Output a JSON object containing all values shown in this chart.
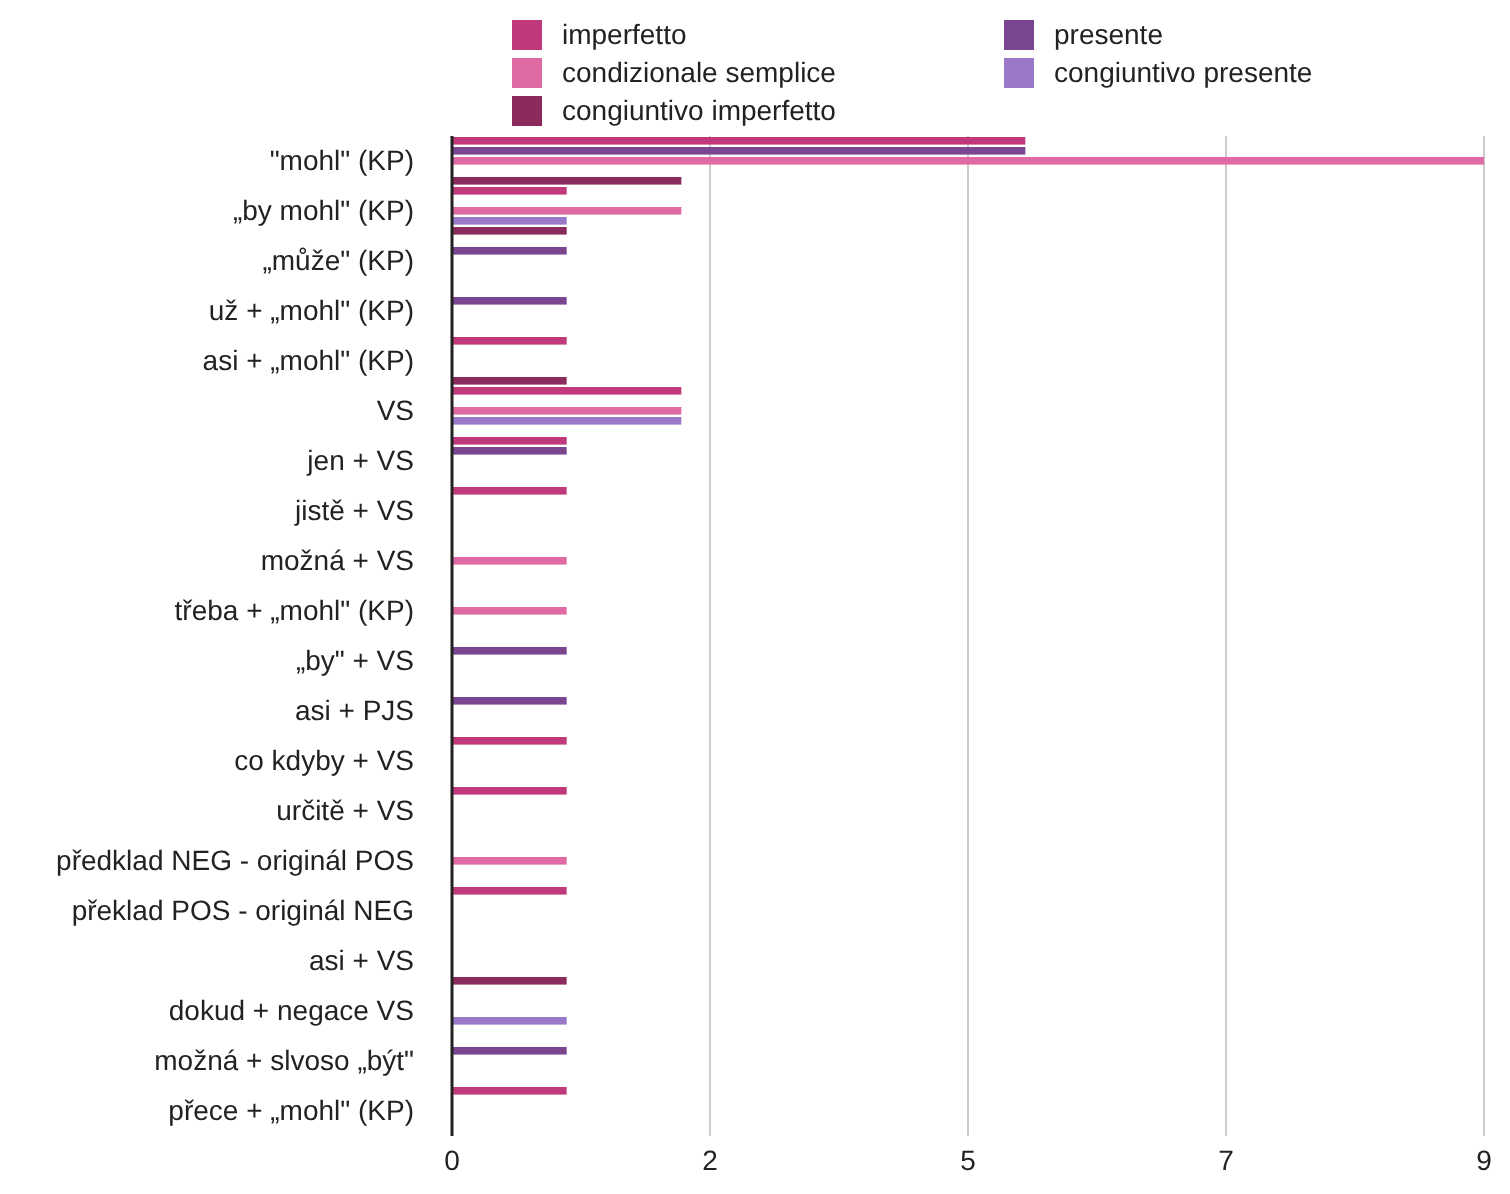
{
  "chart_data": {
    "type": "bar",
    "orientation": "horizontal",
    "legend": "top",
    "grid": "x",
    "categories": [
      "\"mohl\" (KP)",
      "„by mohl\" (KP)",
      "„může\" (KP)",
      "už + „mohl\" (KP)",
      "asi + „mohl\" (KP)",
      "VS",
      "jen + VS",
      "jistě + VS",
      "možná + VS",
      "třeba + „mohl\" (KP)",
      "„by\" + VS",
      "asi + PJS",
      "co kdyby + VS",
      "určitě + VS",
      "předklad NEG - originál POS",
      "překlad POS - originál NEG",
      "asi + VS",
      "dokud + negace VS",
      "možná + slvoso „být\"",
      "přece + „mohl\" (KP)"
    ],
    "xlim": [
      0,
      9
    ],
    "xticks": [
      0,
      {
        "value": 2.25,
        "label": "2"
      },
      {
        "value": 4.5,
        "label": "5"
      },
      {
        "value": 6.75,
        "label": "7"
      },
      9
    ],
    "series": [
      {
        "name": "imperfetto",
        "color": "#c0397a",
        "values": [
          5,
          1,
          null,
          null,
          1,
          2,
          1,
          1,
          null,
          null,
          null,
          null,
          1,
          1,
          null,
          1,
          null,
          null,
          null,
          1
        ]
      },
      {
        "name": "presente",
        "color": "#7b4690",
        "values": [
          5,
          null,
          1,
          1,
          null,
          null,
          1,
          null,
          null,
          null,
          1,
          1,
          null,
          null,
          null,
          null,
          null,
          null,
          1,
          null
        ]
      },
      {
        "name": "condizionale semplice",
        "color": "#e06aa3",
        "values": [
          9,
          2,
          null,
          null,
          null,
          2,
          null,
          null,
          1,
          1,
          null,
          null,
          null,
          null,
          1,
          null,
          null,
          null,
          null,
          null
        ]
      },
      {
        "name": "congiuntivo presente",
        "color": "#9a78c8",
        "values": [
          null,
          1,
          null,
          null,
          null,
          2,
          null,
          null,
          null,
          null,
          null,
          null,
          null,
          null,
          null,
          null,
          null,
          1,
          null,
          null
        ]
      },
      {
        "name": "congiuntivo imperfetto",
        "color": "#8b2a5c",
        "values": [
          2,
          1,
          null,
          null,
          1,
          null,
          null,
          null,
          null,
          null,
          null,
          null,
          null,
          null,
          null,
          null,
          1,
          null,
          null,
          null
        ]
      }
    ]
  }
}
